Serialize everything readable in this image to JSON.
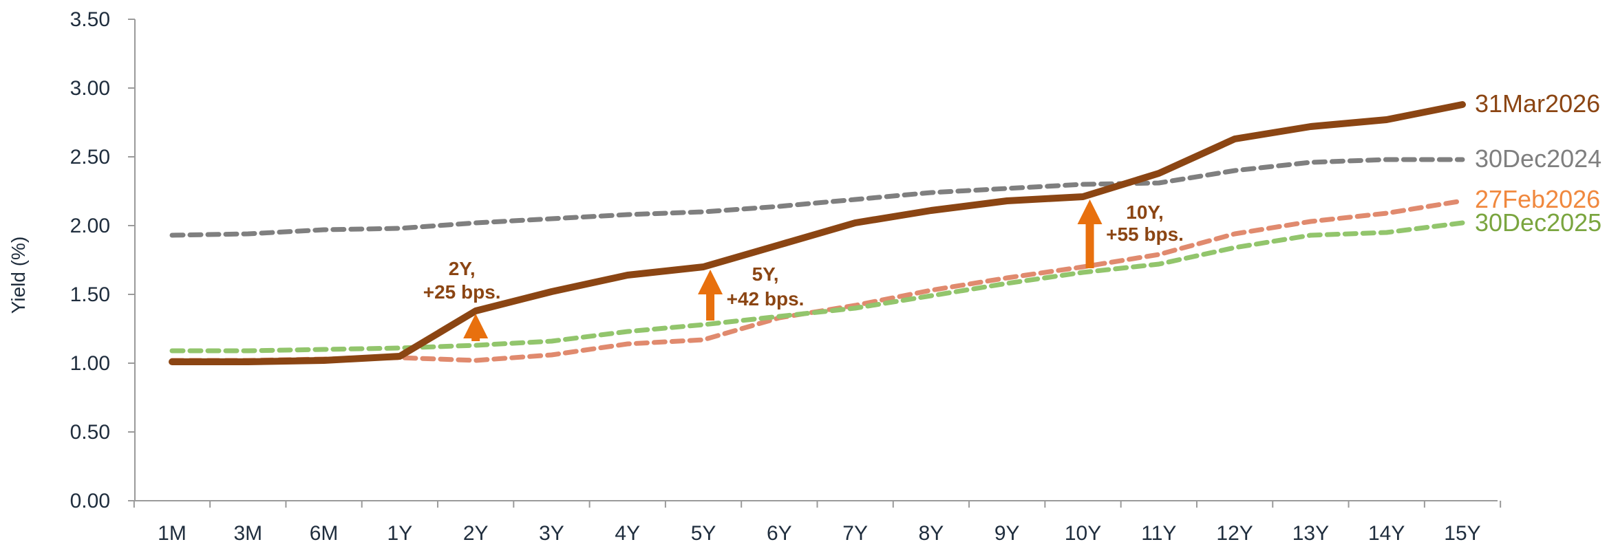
{
  "chart_data": {
    "type": "line",
    "xlabel": "",
    "ylabel": "Yield (%)",
    "ylim": [
      0,
      3.5
    ],
    "yticks": [
      "0.00",
      "0.50",
      "1.00",
      "1.50",
      "2.00",
      "2.50",
      "3.00",
      "3.50"
    ],
    "categories": [
      "1M",
      "3M",
      "6M",
      "1Y",
      "2Y",
      "3Y",
      "4Y",
      "5Y",
      "6Y",
      "7Y",
      "8Y",
      "9Y",
      "10Y",
      "11Y",
      "12Y",
      "13Y",
      "14Y",
      "15Y"
    ],
    "grid": false,
    "series": [
      {
        "name": "30Dec2024",
        "color": "#7f7f7f",
        "style": "dashed",
        "values": [
          1.93,
          1.94,
          1.97,
          1.98,
          2.02,
          2.05,
          2.08,
          2.1,
          2.14,
          2.19,
          2.24,
          2.27,
          2.3,
          2.31,
          2.4,
          2.46,
          2.48,
          2.48
        ]
      },
      {
        "name": "27Feb2026",
        "color": "#e08a6e",
        "style": "dashed",
        "values": [
          1.02,
          1.02,
          1.03,
          1.04,
          1.02,
          1.06,
          1.14,
          1.17,
          1.33,
          1.42,
          1.53,
          1.62,
          1.7,
          1.79,
          1.94,
          2.03,
          2.09,
          2.18
        ]
      },
      {
        "name": "30Dec2025",
        "color": "#92c56c",
        "style": "dashed",
        "values": [
          1.09,
          1.09,
          1.1,
          1.11,
          1.13,
          1.16,
          1.23,
          1.28,
          1.34,
          1.4,
          1.49,
          1.58,
          1.66,
          1.72,
          1.84,
          1.93,
          1.95,
          2.02
        ]
      },
      {
        "name": "31Mar2026",
        "color": "#8b4513",
        "style": "solid",
        "values": [
          1.01,
          1.01,
          1.02,
          1.05,
          1.38,
          1.52,
          1.64,
          1.7,
          1.86,
          2.02,
          2.11,
          2.18,
          2.21,
          2.38,
          2.63,
          2.72,
          2.77,
          2.88
        ]
      }
    ],
    "legend_labels": [
      {
        "name": "31Mar2026",
        "color": "#8b4513"
      },
      {
        "name": "30Dec2024",
        "color": "#7f7f7f"
      },
      {
        "name": "27Feb2026",
        "color": "#f0883e"
      },
      {
        "name": "30Dec2025",
        "color": "#7aa53f"
      }
    ],
    "annotations": [
      {
        "category": "2Y",
        "from": 1.13,
        "to": 1.38,
        "line1": "2Y,",
        "line2": "+25 bps."
      },
      {
        "category": "5Y",
        "from": 1.28,
        "to": 1.7,
        "line1": "5Y,",
        "line2": "+42 bps."
      },
      {
        "category": "10Y",
        "from": 1.66,
        "to": 2.21,
        "line1": "10Y,",
        "line2": "+55 bps."
      }
    ],
    "arrow_color": "#e8700e"
  }
}
